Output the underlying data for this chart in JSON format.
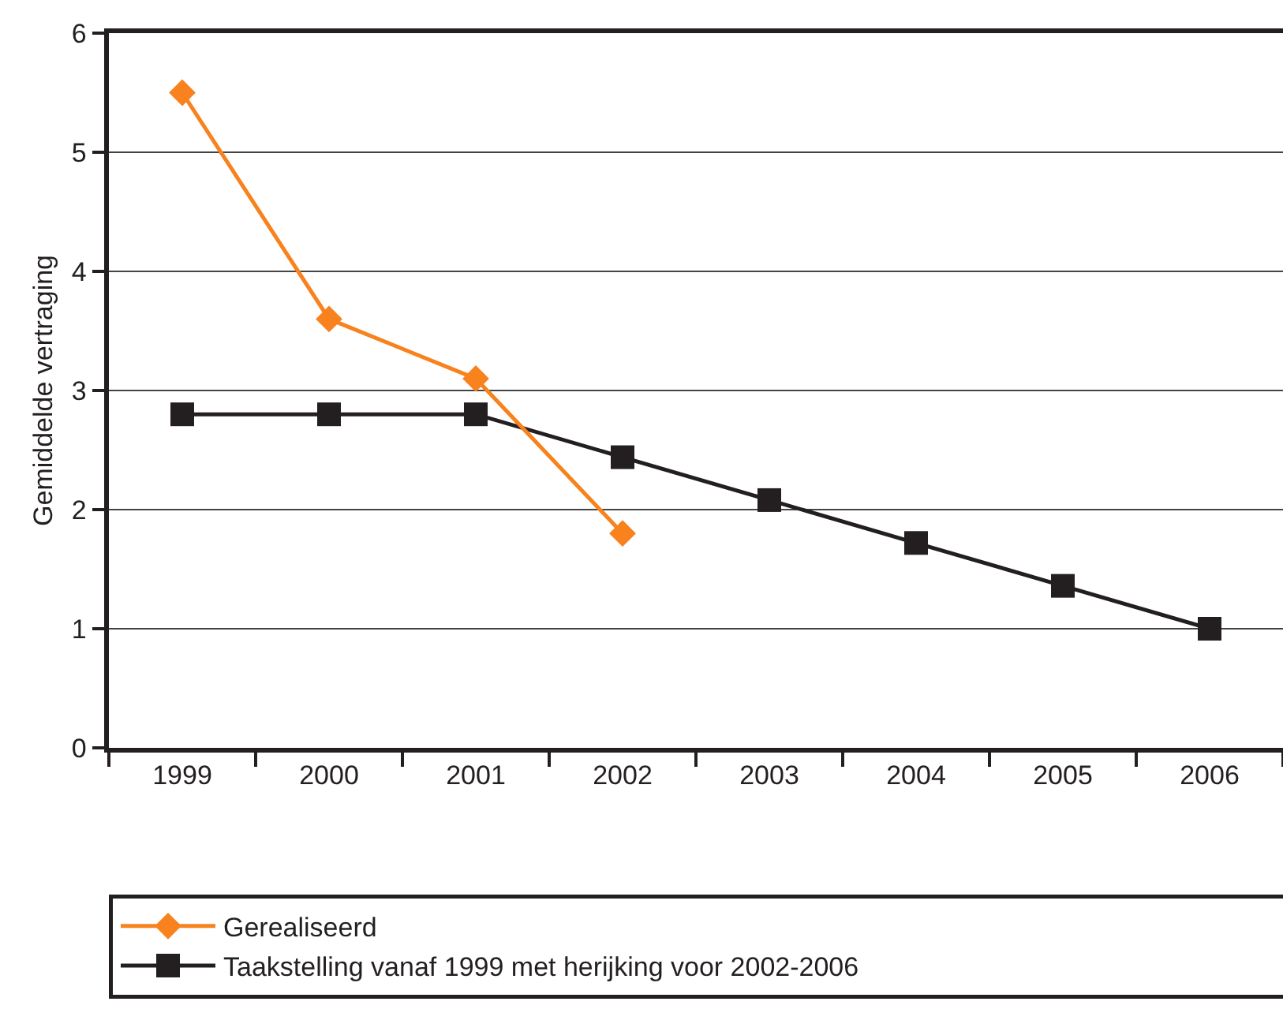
{
  "chart_data": {
    "type": "line",
    "ylabel": "Gemiddelde vertraging",
    "categories": [
      "1999",
      "2000",
      "2001",
      "2002",
      "2003",
      "2004",
      "2005",
      "2006"
    ],
    "series": [
      {
        "name": "Gerealiseerd",
        "color": "#f7821e",
        "marker": "diamond",
        "values": [
          5.5,
          3.6,
          3.1,
          1.8,
          null,
          null,
          null,
          null
        ]
      },
      {
        "name": "Taakstelling vanaf 1999 met herijking voor 2002-2006",
        "color": "#231f20",
        "marker": "square",
        "values": [
          2.8,
          2.8,
          2.8,
          2.44,
          2.08,
          1.72,
          1.36,
          1.0
        ]
      }
    ],
    "ylim": [
      0,
      6
    ],
    "yticks": [
      0,
      1,
      2,
      3,
      4,
      5,
      6
    ],
    "grid": "y",
    "legend": "bottom",
    "line_style": "solid"
  }
}
